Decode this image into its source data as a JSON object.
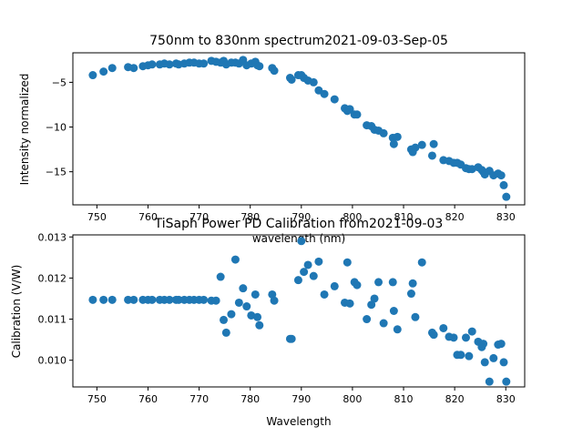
{
  "colors": {
    "marker": "#1f77b4",
    "background": "#ffffff",
    "axis": "#000000"
  },
  "chart_data": [
    {
      "type": "scatter",
      "title": "750nm to 830nm spectrum2021-09-03-Sep-05",
      "xlabel": "wavelength (nm)",
      "ylabel": "Intensity normalized",
      "xlim": [
        745.3,
        833.7
      ],
      "ylim": [
        -18.7,
        -1.7
      ],
      "xticks": [
        750,
        760,
        770,
        780,
        790,
        800,
        810,
        820,
        830
      ],
      "yticks": [
        -15,
        -10,
        -5
      ],
      "grid": false,
      "x": [
        749.2,
        751.3,
        753.0,
        756.1,
        757.2,
        759.0,
        760.0,
        760.8,
        762.3,
        763.2,
        764.2,
        765.5,
        766.0,
        767.1,
        768.1,
        769.0,
        770.0,
        770.9,
        772.4,
        773.3,
        774.2,
        774.8,
        775.3,
        776.3,
        777.1,
        777.8,
        778.6,
        779.3,
        780.2,
        781.0,
        781.4,
        781.8,
        784.3,
        784.7,
        787.8,
        788.1,
        789.4,
        790.0,
        790.5,
        791.3,
        792.4,
        793.4,
        794.5,
        796.5,
        798.5,
        799.0,
        799.5,
        800.4,
        800.9,
        802.8,
        803.7,
        804.3,
        805.1,
        806.1,
        807.9,
        808.1,
        808.8,
        811.5,
        811.8,
        812.3,
        813.6,
        815.6,
        815.9,
        817.8,
        818.9,
        819.8,
        820.5,
        821.2,
        822.2,
        822.8,
        823.4,
        824.6,
        825.3,
        825.6,
        825.9,
        826.8,
        827.6,
        828.5,
        829.1,
        829.6,
        830.1
      ],
      "y": [
        -4.2,
        -3.8,
        -3.4,
        -3.3,
        -3.4,
        -3.2,
        -3.1,
        -3.0,
        -3.0,
        -2.9,
        -3.0,
        -2.9,
        -3.0,
        -2.9,
        -2.8,
        -2.8,
        -2.9,
        -2.9,
        -2.6,
        -2.7,
        -2.8,
        -2.6,
        -3.0,
        -2.8,
        -2.8,
        -2.9,
        -2.5,
        -3.1,
        -2.9,
        -2.7,
        -3.1,
        -3.2,
        -3.4,
        -3.7,
        -4.5,
        -4.7,
        -4.2,
        -4.2,
        -4.5,
        -4.8,
        -5.0,
        -5.9,
        -6.3,
        -6.9,
        -7.9,
        -8.2,
        -8.0,
        -8.6,
        -8.6,
        -9.8,
        -9.9,
        -10.3,
        -10.4,
        -10.7,
        -11.2,
        -11.9,
        -11.1,
        -12.5,
        -12.8,
        -12.3,
        -12.0,
        -13.2,
        -11.9,
        -13.7,
        -13.8,
        -14.0,
        -14.0,
        -14.2,
        -14.6,
        -14.7,
        -14.7,
        -14.5,
        -14.8,
        -15.0,
        -15.3,
        -14.9,
        -15.4,
        -15.2,
        -15.4,
        -16.5,
        -17.8
      ]
    },
    {
      "type": "scatter",
      "title": "TiSaph Power PD Calibration from2021-09-03",
      "xlabel": "Wavelength",
      "ylabel": "Calibration (V/W)",
      "xlim": [
        745.3,
        833.7
      ],
      "ylim": [
        0.00935,
        0.01305
      ],
      "xticks": [
        750,
        760,
        770,
        780,
        790,
        800,
        810,
        820,
        830
      ],
      "yticks": [
        0.01,
        0.011,
        0.012,
        0.013
      ],
      "grid": false,
      "x": [
        749.2,
        751.3,
        753.0,
        756.1,
        757.2,
        759.0,
        760.0,
        760.8,
        762.3,
        763.2,
        764.2,
        765.5,
        766.0,
        767.1,
        768.1,
        769.0,
        770.0,
        770.9,
        772.4,
        773.3,
        774.2,
        774.8,
        775.3,
        776.3,
        777.1,
        777.8,
        778.6,
        779.3,
        780.2,
        781.0,
        781.4,
        781.8,
        784.3,
        784.7,
        787.8,
        788.1,
        789.4,
        790.0,
        790.5,
        791.3,
        792.4,
        793.4,
        794.5,
        796.5,
        798.5,
        799.0,
        799.5,
        800.4,
        800.9,
        802.8,
        803.7,
        804.3,
        805.1,
        806.1,
        807.9,
        808.1,
        808.8,
        811.5,
        811.8,
        812.3,
        813.6,
        815.6,
        815.9,
        817.8,
        818.9,
        819.8,
        820.5,
        821.2,
        822.2,
        822.8,
        823.4,
        824.6,
        825.3,
        825.6,
        825.9,
        826.8,
        827.6,
        828.5,
        829.1,
        829.6,
        830.1
      ],
      "y": [
        0.01147,
        0.01147,
        0.01147,
        0.01147,
        0.01147,
        0.01147,
        0.01147,
        0.01147,
        0.01147,
        0.01147,
        0.01147,
        0.01147,
        0.01147,
        0.01147,
        0.01147,
        0.01147,
        0.01147,
        0.01147,
        0.01145,
        0.01145,
        0.01203,
        0.01098,
        0.01067,
        0.01112,
        0.01245,
        0.0114,
        0.01175,
        0.01131,
        0.01109,
        0.0116,
        0.01105,
        0.01085,
        0.0116,
        0.01145,
        0.01052,
        0.01052,
        0.01195,
        0.0129,
        0.01215,
        0.01232,
        0.01205,
        0.0124,
        0.0116,
        0.0118,
        0.0114,
        0.01238,
        0.01138,
        0.0119,
        0.01183,
        0.011,
        0.01135,
        0.0115,
        0.0119,
        0.0109,
        0.0119,
        0.0112,
        0.01075,
        0.01162,
        0.01187,
        0.01105,
        0.01238,
        0.01067,
        0.01062,
        0.01078,
        0.01057,
        0.01055,
        0.01013,
        0.01013,
        0.01055,
        0.0101,
        0.0107,
        0.01045,
        0.01032,
        0.0104,
        0.00995,
        0.00948,
        0.01005,
        0.01038,
        0.0104,
        0.00995,
        0.00948
      ]
    }
  ]
}
